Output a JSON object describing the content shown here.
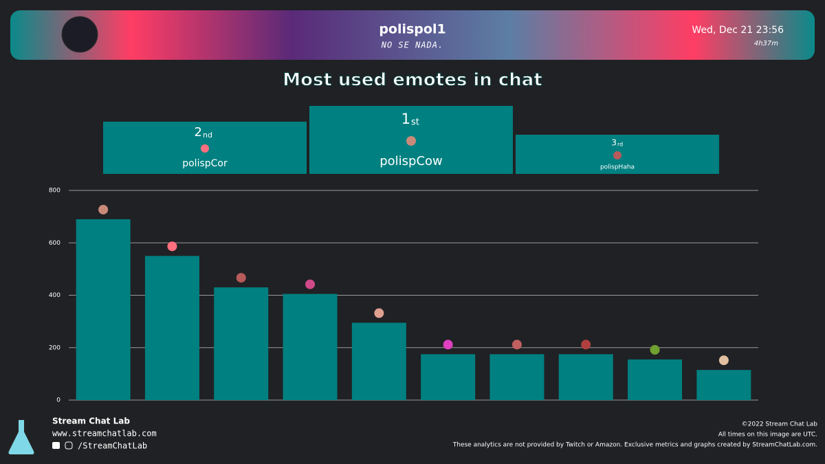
{
  "header": {
    "channel": "polispol1",
    "stream_title": "NO SE NADA.",
    "date": "Wed, Dec 21 23:56",
    "duration": "4h37m"
  },
  "podium": [
    {
      "rank": "2",
      "suffix": "nd",
      "emote": "polispCor"
    },
    {
      "rank": "1",
      "suffix": "st",
      "emote": "polispCow"
    },
    {
      "rank": "3",
      "suffix": "rd",
      "emote": "polispHaha"
    }
  ],
  "chart_data": {
    "type": "bar",
    "title": "Most used emotes in chat",
    "categories": [
      null,
      null,
      null,
      null,
      null,
      null,
      null,
      null,
      null,
      null
    ],
    "values": [
      690,
      550,
      430,
      405,
      295,
      175,
      175,
      175,
      155,
      115
    ],
    "color": "#008080",
    "ylim": [
      0,
      800
    ],
    "yticks": [
      0,
      200,
      400,
      600,
      800
    ],
    "grid": true
  },
  "footer": {
    "brand": "Stream Chat Lab",
    "url": "www.streamchatlab.com",
    "social": "/StreamChatLab",
    "copyright": "©2022 Stream Chat Lab",
    "timezone_note": "All times on this image are UTC.",
    "disclaimer": "These analytics are not provided by Twitch or Amazon. Exclusive metrics and graphs created by StreamChatLab.com."
  }
}
